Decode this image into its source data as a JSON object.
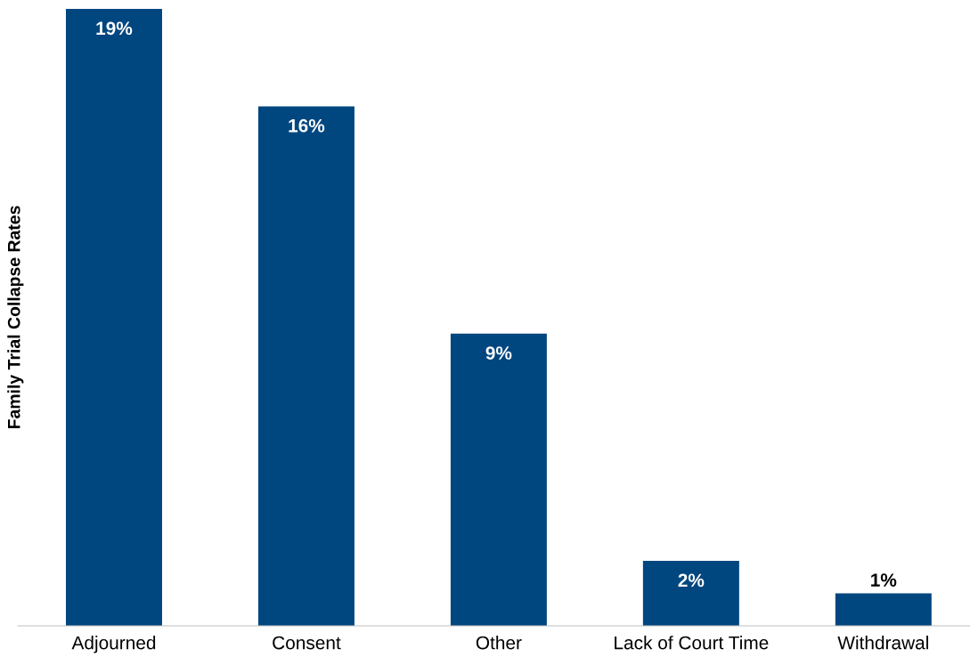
{
  "chart_data": {
    "type": "bar",
    "ylabel": "Family Trial Collapse Rates",
    "categories": [
      "Adjourned",
      "Consent",
      "Other",
      "Lack of Court Time",
      "Withdrawal"
    ],
    "values": [
      19,
      16,
      9,
      2,
      1
    ],
    "value_labels": [
      "19%",
      "16%",
      "9%",
      "2%",
      "1%"
    ],
    "color": "#00467f",
    "grid": false,
    "legend": false
  }
}
